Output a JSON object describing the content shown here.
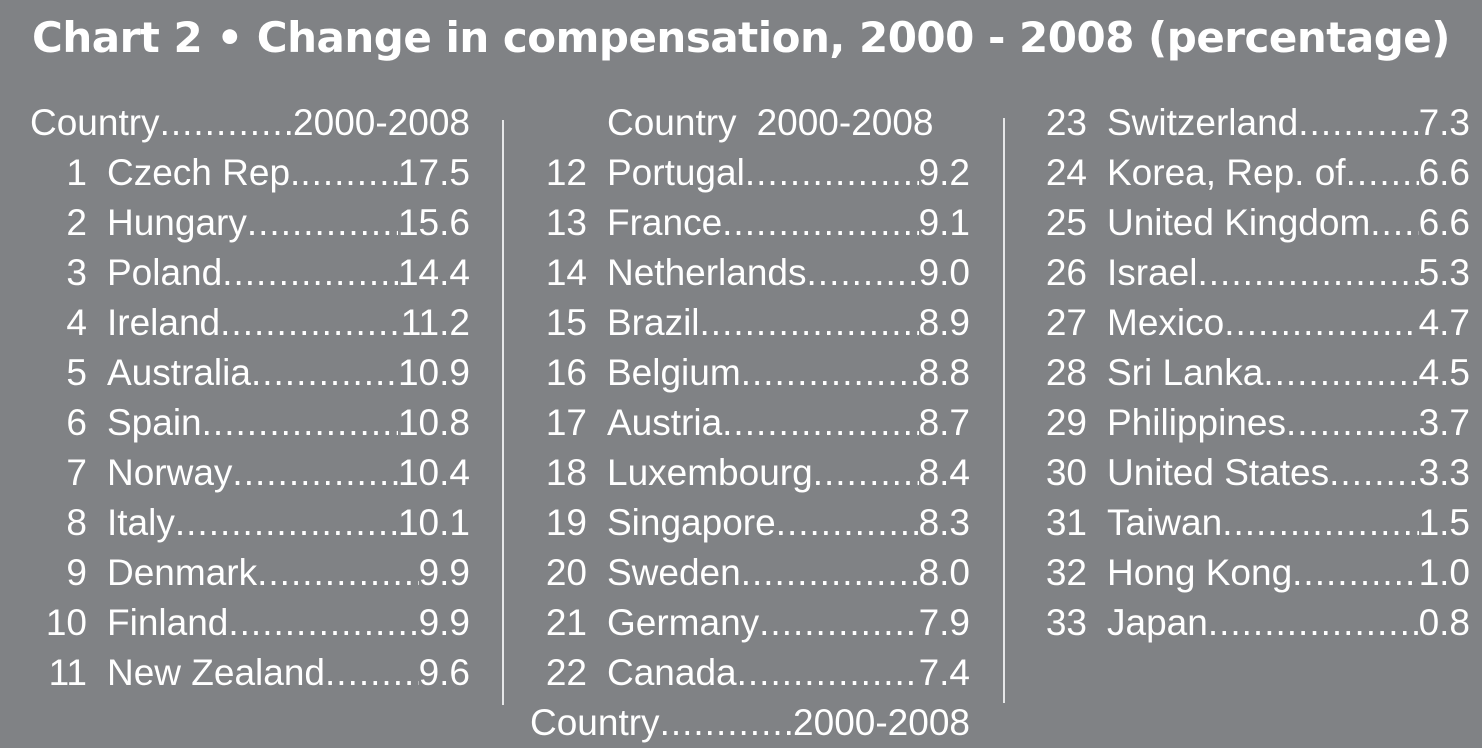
{
  "title": "Chart 2 • Change in compensation, 2000 - 2008 (percentage)",
  "chart_data": {
    "type": "table",
    "title": "Chart 2 • Change in compensation, 2000 - 2008 (percentage)",
    "column_headers": [
      "Country",
      "2000-2008"
    ],
    "rows": [
      {
        "rank": "1",
        "country": "Czech Rep.",
        "value": "17.5"
      },
      {
        "rank": "2",
        "country": "Hungary",
        "value": "15.6"
      },
      {
        "rank": "3",
        "country": "Poland",
        "value": "14.4"
      },
      {
        "rank": "4",
        "country": "Ireland",
        "value": "11.2"
      },
      {
        "rank": "5",
        "country": "Australia",
        "value": "10.9"
      },
      {
        "rank": "6",
        "country": "Spain",
        "value": "10.8"
      },
      {
        "rank": "7",
        "country": "Norway",
        "value": "10.4"
      },
      {
        "rank": "8",
        "country": "Italy",
        "value": "10.1"
      },
      {
        "rank": "9",
        "country": "Denmark",
        "value": "9.9"
      },
      {
        "rank": "10",
        "country": "Finland",
        "value": "9.9"
      },
      {
        "rank": "11",
        "country": "New Zealand",
        "value": "9.6"
      },
      {
        "rank": "12",
        "country": "Portugal",
        "value": "9.2"
      },
      {
        "rank": "13",
        "country": "France",
        "value": "9.1"
      },
      {
        "rank": "14",
        "country": "Netherlands",
        "value": "9.0"
      },
      {
        "rank": "15",
        "country": "Brazil",
        "value": "8.9"
      },
      {
        "rank": "16",
        "country": "Belgium",
        "value": "8.8"
      },
      {
        "rank": "17",
        "country": "Austria",
        "value": "8.7"
      },
      {
        "rank": "18",
        "country": "Luxembourg",
        "value": "8.4"
      },
      {
        "rank": "19",
        "country": "Singapore",
        "value": "8.3"
      },
      {
        "rank": "20",
        "country": "Sweden",
        "value": "8.0"
      },
      {
        "rank": "21",
        "country": "Germany",
        "value": "7.9"
      },
      {
        "rank": "22",
        "country": "Canada",
        "value": "7.4"
      },
      {
        "rank": "23",
        "country": "Switzerland",
        "value": "7.3"
      },
      {
        "rank": "24",
        "country": "Korea, Rep. of",
        "value": "6.6"
      },
      {
        "rank": "25",
        "country": "United Kingdom",
        "value": "6.6"
      },
      {
        "rank": "26",
        "country": "Israel",
        "value": "5.3"
      },
      {
        "rank": "27",
        "country": "Mexico",
        "value": "4.7"
      },
      {
        "rank": "28",
        "country": "Sri Lanka",
        "value": "4.5"
      },
      {
        "rank": "29",
        "country": "Philippines",
        "value": "3.7"
      },
      {
        "rank": "30",
        "country": "United States",
        "value": "3.3"
      },
      {
        "rank": "31",
        "country": "Taiwan",
        "value": "1.5"
      },
      {
        "rank": "32",
        "country": "Hong Kong",
        "value": "1.0"
      },
      {
        "rank": "33",
        "country": "Japan",
        "value": "0.8"
      }
    ]
  },
  "colors": {
    "background": "#808285",
    "text": "#ffffff",
    "divider": "#e6e7e8"
  }
}
